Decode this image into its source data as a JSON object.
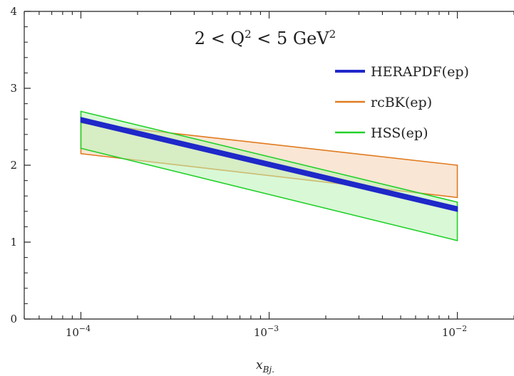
{
  "chart_data": {
    "type": "area",
    "title": "2 < Q² < 5 GeV²",
    "xlabel": "x_Bj.",
    "ylabel": "",
    "x_scale": "log",
    "xlim": [
      5e-05,
      0.02
    ],
    "ylim": [
      0,
      4
    ],
    "x_ticks": [
      {
        "value": 0.0001,
        "label": "10",
        "exp": "−4"
      },
      {
        "value": 0.001,
        "label": "10",
        "exp": "−3"
      },
      {
        "value": 0.01,
        "label": "10",
        "exp": "−2"
      }
    ],
    "y_ticks": [
      0,
      1,
      2,
      3,
      4
    ],
    "grid": false,
    "legend_position": "top-right",
    "series": [
      {
        "name": "rcBK(ep)",
        "color": "#e07b1f",
        "fill": "#f6d2b1",
        "x": [
          0.0001,
          0.01
        ],
        "lower": [
          2.15,
          1.58
        ],
        "upper": [
          2.55,
          2.0
        ]
      },
      {
        "name": "HSS(ep)",
        "color": "#22d12a",
        "fill": "#b9f2b4",
        "x": [
          0.0001,
          0.01
        ],
        "lower": [
          2.22,
          1.02
        ],
        "upper": [
          2.7,
          1.52
        ]
      },
      {
        "name": "HERAPDF(ep)",
        "color": "#1f28c9",
        "fill": "#1f28c9",
        "x": [
          0.0001,
          0.01
        ],
        "lower": [
          2.56,
          1.4
        ],
        "upper": [
          2.62,
          1.46
        ]
      }
    ]
  }
}
